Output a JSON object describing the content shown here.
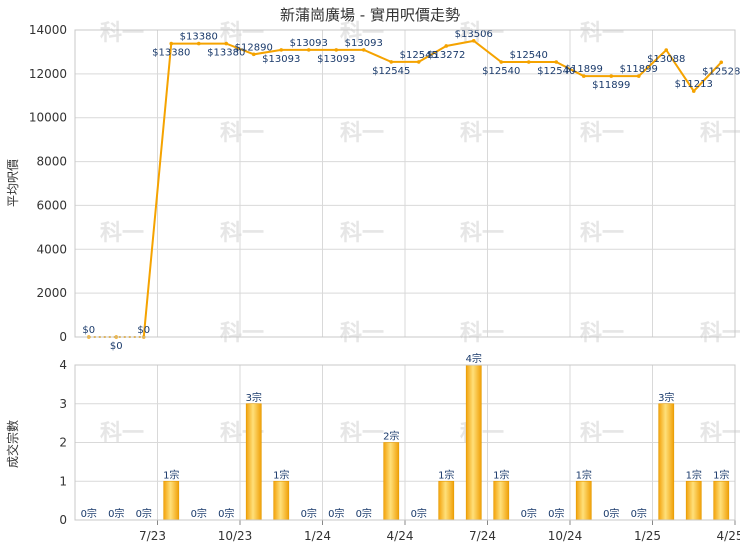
{
  "chart_data": [
    {
      "type": "line",
      "title": "新蒲崗廣場 - 實用呎價走勢",
      "ylabel": "平均呎價",
      "ylim": [
        0,
        14000
      ],
      "yticks": [
        "0",
        "2000",
        "4000",
        "6000",
        "8000",
        "10000",
        "12000",
        "14000"
      ],
      "grid": true,
      "color": "#f5a300",
      "series": [
        {
          "values": [
            0,
            0,
            0,
            13380,
            13380,
            13380,
            12890,
            13093,
            13093,
            13093,
            13093,
            12545,
            12545,
            13272,
            13506,
            12540,
            12540,
            12540,
            11899,
            11899,
            11899,
            13088,
            11213,
            12528
          ],
          "labels": [
            "$0",
            "$0",
            "$0",
            "$13380",
            "$13380",
            "$13380",
            "$12890",
            "$13093",
            "$13093",
            "$13093",
            "$13093",
            "$12545",
            "$12545",
            "$13272",
            "$13506",
            "$12540",
            "$12540",
            "$12540",
            "$11899",
            "$11899",
            "$11899",
            "$13088",
            "$11213",
            "$12528"
          ]
        }
      ]
    },
    {
      "type": "bar",
      "ylabel": "成交宗數",
      "ylim": [
        0,
        4
      ],
      "yticks": [
        "0",
        "1",
        "2",
        "3",
        "4"
      ],
      "grid": true,
      "color": "#f5b21a",
      "x_ticks": [
        "7/23",
        "10/23",
        "1/24",
        "4/24",
        "7/24",
        "10/24",
        "1/25",
        "4/25"
      ],
      "values": [
        0,
        0,
        0,
        1,
        0,
        0,
        3,
        1,
        0,
        0,
        0,
        2,
        0,
        1,
        4,
        1,
        0,
        0,
        1,
        0,
        0,
        3,
        1,
        1
      ],
      "labels": [
        "0宗",
        "0宗",
        "0宗",
        "1宗",
        "0宗",
        "0宗",
        "3宗",
        "1宗",
        "0宗",
        "0宗",
        "0宗",
        "2宗",
        "0宗",
        "1宗",
        "4宗",
        "1宗",
        "0宗",
        "0宗",
        "1宗",
        "0宗",
        "0宗",
        "3宗",
        "1宗",
        "1宗"
      ]
    }
  ],
  "watermark": "科一"
}
